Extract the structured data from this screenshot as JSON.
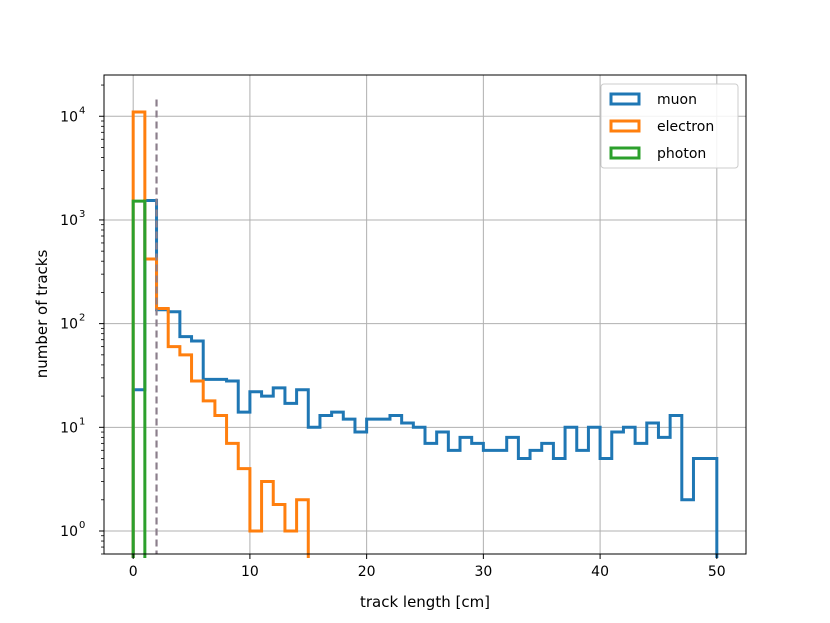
{
  "chart_data": {
    "type": "histogram",
    "title": "",
    "xlabel": "track length [cm]",
    "ylabel": "number of tracks",
    "xlim": [
      -2.5,
      52.5
    ],
    "ylim": [
      0.6,
      25000
    ],
    "yscale": "log",
    "grid": true,
    "legend_position": "top-right",
    "x_ticks": [
      0,
      10,
      20,
      30,
      40,
      50
    ],
    "x_tick_labels": [
      "0",
      "10",
      "20",
      "30",
      "40",
      "50"
    ],
    "y_ticks": [
      1,
      10,
      100,
      1000,
      10000
    ],
    "y_tick_bases": [
      "10",
      "10",
      "10",
      "10",
      "10"
    ],
    "y_tick_exps": [
      "0",
      "1",
      "2",
      "3",
      "4"
    ],
    "cut_line": {
      "x": 2,
      "y_top": 14500,
      "style": "dashed",
      "color": "#8c7f8c"
    },
    "series": [
      {
        "name": "muon",
        "color": "#1f77b4",
        "bin_width": 1,
        "bin_start": 0,
        "counts": [
          23,
          1540,
          136,
          130,
          75,
          68,
          29,
          29,
          28,
          14,
          22,
          20,
          24,
          17,
          23,
          10,
          13,
          14,
          12,
          9,
          12,
          12,
          13,
          11,
          10,
          7,
          9,
          6,
          8,
          7,
          6,
          6,
          8,
          5,
          6,
          7,
          5,
          10,
          6,
          10,
          5,
          9,
          10,
          7,
          11,
          8,
          13,
          2,
          5,
          5
        ]
      },
      {
        "name": "electron",
        "color": "#ff7f0e",
        "bin_width": 1,
        "bin_start": 0,
        "counts": [
          11000,
          420,
          140,
          60,
          50,
          28,
          18,
          13,
          7,
          4,
          1,
          3,
          1.8,
          1,
          2
        ]
      },
      {
        "name": "photon",
        "color": "#2ca02c",
        "bin_width": 1,
        "bin_start": 0,
        "counts": [
          1520
        ]
      }
    ]
  }
}
